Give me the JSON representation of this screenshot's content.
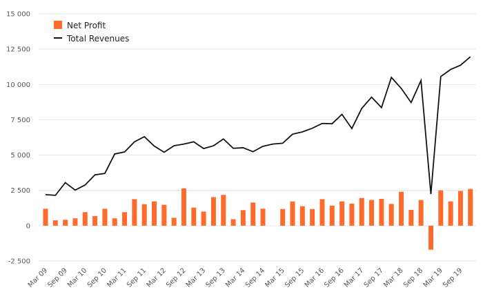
{
  "chart_data": {
    "type": "bar",
    "categories": [
      "Mar 09",
      "Jun 09",
      "Sep 09",
      "Dec 09",
      "Mar 10",
      "Jun 10",
      "Sep 10",
      "Dec 10",
      "Mar 11",
      "Jun 11",
      "Sep 11",
      "Dec 11",
      "Mar 12",
      "Jun 12",
      "Sep 12",
      "Dec 12",
      "Mar 13",
      "Jun 13",
      "Sep 13",
      "Dec 13",
      "Mar 14",
      "Jun 14",
      "Sep 14",
      "Dec 14",
      "Mar 15",
      "Jun 15",
      "Sep 15",
      "Dec 15",
      "Mar 16",
      "Jun 16",
      "Sep 16",
      "Dec 16",
      "Mar 17",
      "Jun 17",
      "Sep 17",
      "Dec 17",
      "Mar 18",
      "Jun 18",
      "Sep 18",
      "Dec 18",
      "Mar 19",
      "Jun 19",
      "Sep 19",
      "Dec 19"
    ],
    "x_tick_labels": [
      "Mar 09",
      "Sep 09",
      "Mar 10",
      "Sep 10",
      "Mar 11",
      "Sep 11",
      "Mar 12",
      "Sep 12",
      "Mar 13",
      "Sep 13",
      "Mar 14",
      "Sep 14",
      "Mar 15",
      "Sep 15",
      "Mar 16",
      "Sep 16",
      "Mar 17",
      "Sep 17",
      "Mar 18",
      "Sep 18",
      "Mar 19",
      "Sep 19"
    ],
    "series": [
      {
        "name": "Net Profit",
        "type": "bar",
        "color": "#ff6b2c",
        "values": [
          1200,
          380,
          420,
          520,
          960,
          680,
          1200,
          520,
          960,
          1880,
          1520,
          1720,
          1480,
          560,
          2640,
          1280,
          1000,
          2020,
          2180,
          460,
          1100,
          1640,
          1200,
          null,
          1180,
          1720,
          1380,
          1180,
          1880,
          1420,
          1720,
          1560,
          1960,
          1820,
          1900,
          1540,
          2400,
          1120,
          1820,
          -1700,
          2500,
          1720,
          2460,
          2600
        ]
      },
      {
        "name": "Total Revenues",
        "type": "line",
        "color": "#111111",
        "values": [
          2200,
          2150,
          3050,
          2520,
          2880,
          3600,
          3700,
          5080,
          5220,
          5940,
          6300,
          5640,
          5200,
          5660,
          5780,
          5940,
          5460,
          5660,
          6140,
          5480,
          5520,
          5240,
          5620,
          5780,
          5840,
          6480,
          6640,
          6900,
          7240,
          7220,
          7880,
          6880,
          8300,
          9100,
          8360,
          10500,
          9720,
          8720,
          10280,
          2240,
          10560,
          11060,
          11360,
          11960
        ]
      }
    ],
    "ylim": [
      -2500,
      15000
    ],
    "yticks": [
      -2500,
      0,
      2500,
      5000,
      7500,
      10000,
      12500,
      15000
    ],
    "ytick_labels": [
      "-2 500",
      "0",
      "2 500",
      "5 000",
      "7 500",
      "10 000",
      "12 500",
      "15 000"
    ],
    "grid": true,
    "legend": {
      "position": "top-left",
      "entries": [
        "Net Profit",
        "Total Revenues"
      ]
    },
    "title": "",
    "xlabel": "",
    "ylabel": ""
  }
}
